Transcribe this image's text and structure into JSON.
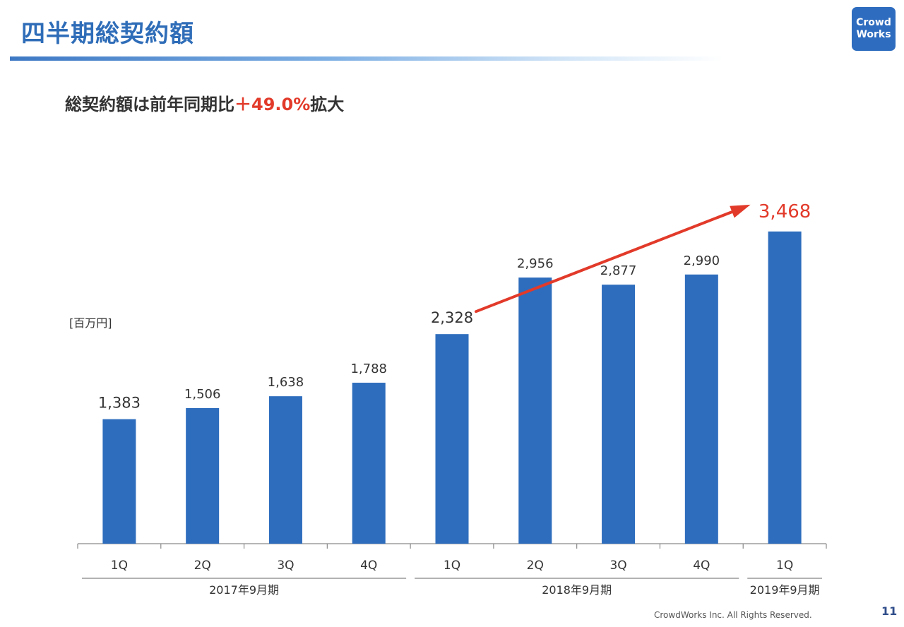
{
  "slide": {
    "title": "四半期総契約額",
    "logo_line1": "Crowd",
    "logo_line2": "Works",
    "headline_prefix": "総契約額は前年同期比",
    "headline_accent": "＋49.0%",
    "headline_suffix": "拡大",
    "unit_label": "[百万円]",
    "footer": "CrowdWorks Inc. All Rights Reserved.",
    "page_number": "11"
  },
  "colors": {
    "bar": "#2e6dbd",
    "accent": "#e23a2a",
    "title": "#2f6db8"
  },
  "chart_data": {
    "type": "bar",
    "title": "四半期総契約額",
    "ylabel": "[百万円]",
    "categories": [
      "1Q",
      "2Q",
      "3Q",
      "4Q",
      "1Q",
      "2Q",
      "3Q",
      "4Q",
      "1Q"
    ],
    "values": [
      1383,
      1506,
      1638,
      1788,
      2328,
      2956,
      2877,
      2990,
      3468
    ],
    "value_labels": [
      "1,383",
      "1,506",
      "1,638",
      "1,788",
      "2,328",
      "2,956",
      "2,877",
      "2,990",
      "3,468"
    ],
    "groups": [
      {
        "label": "2017年9月期",
        "start": 0,
        "end": 3
      },
      {
        "label": "2018年9月期",
        "start": 4,
        "end": 7
      },
      {
        "label": "2019年9月期",
        "start": 8,
        "end": 8
      }
    ],
    "highlight": {
      "from_index": 4,
      "to_index": 8,
      "color": "#e23a2a"
    },
    "ylim": [
      0,
      3700
    ],
    "grid": false
  }
}
